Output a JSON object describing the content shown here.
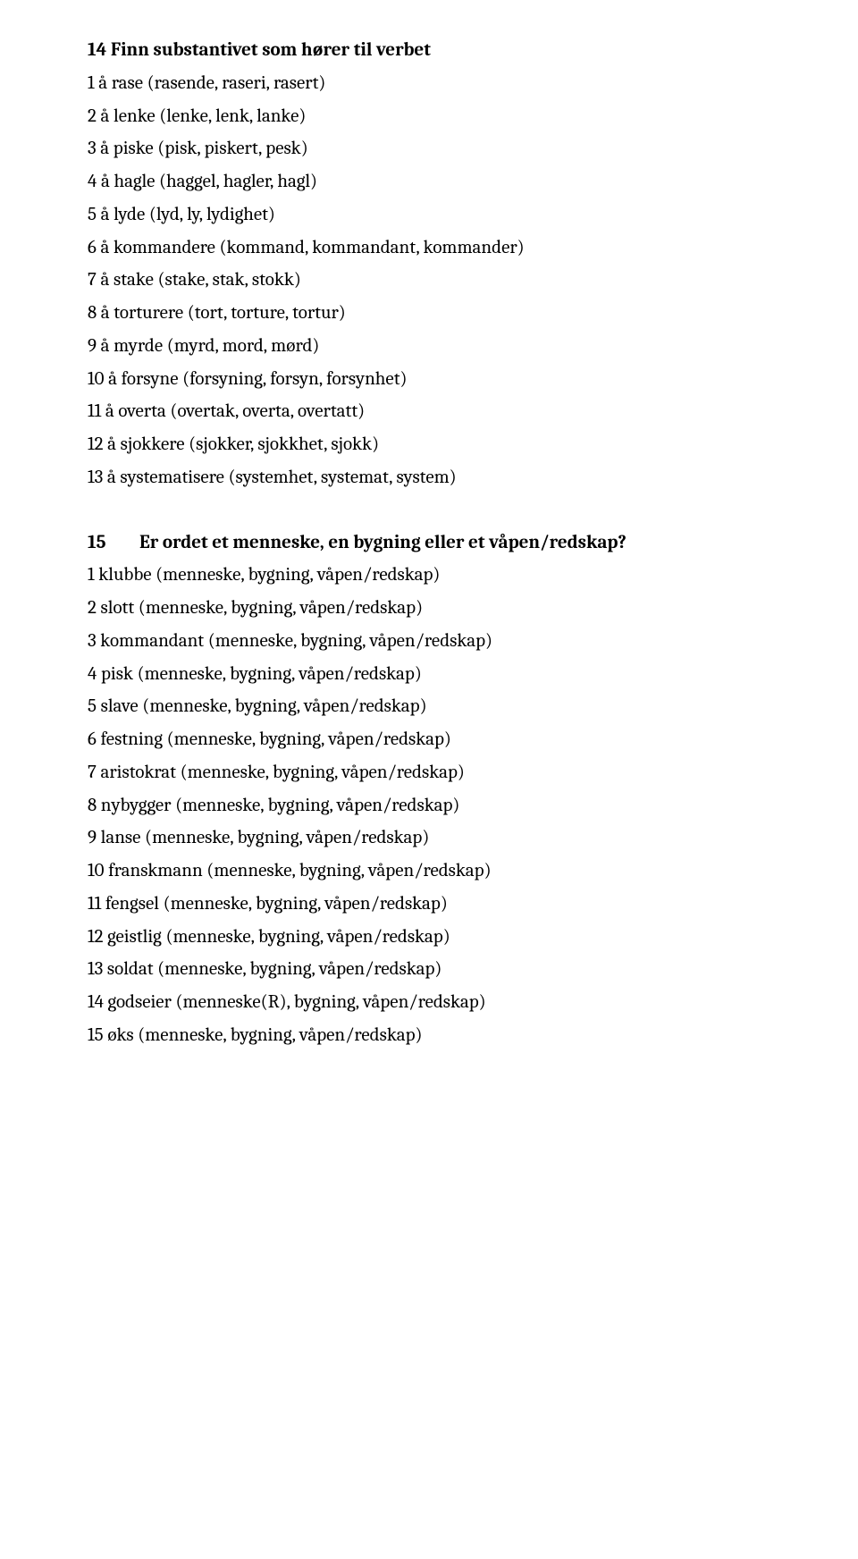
{
  "section14": {
    "heading": "14  Finn substantivet som hører til verbet",
    "items": [
      "1 å rase (rasende, raseri, rasert)",
      "2 å lenke (lenke, lenk, lanke)",
      "3 å piske (pisk, piskert, pesk)",
      "4 å hagle (haggel, hagler, hagl)",
      "5 å lyde (lyd, ly, lydighet)",
      "6 å kommandere (kommand, kommandant, kommander)",
      "7 å stake (stake, stak, stokk)",
      "8 å torturere (tort, torture, tortur)",
      "9 å myrde (myrd, mord, mørd)",
      "10 å forsyne  (forsyning, forsyn, forsynhet)",
      "11 å overta (overtak, overta, overtatt)",
      "12 å sjokkere (sjokker, sjokkhet, sjokk)",
      "13 å systematisere (systemhet, systemat, system)"
    ]
  },
  "section15": {
    "number": "15",
    "title": "Er ordet et menneske, en bygning eller et våpen/redskap?",
    "items": [
      "1 klubbe  (menneske, bygning, våpen/redskap)",
      "2 slott  (menneske, bygning, våpen/redskap)",
      "3 kommandant  (menneske, bygning, våpen/redskap)",
      "4 pisk (menneske, bygning, våpen/redskap)",
      "5 slave  (menneske, bygning, våpen/redskap)",
      "6 festning  (menneske, bygning, våpen/redskap)",
      "7 aristokrat  (menneske, bygning, våpen/redskap)",
      "8 nybygger  (menneske, bygning, våpen/redskap)",
      "9 lanse  (menneske, bygning, våpen/redskap)",
      "10  franskmann  (menneske, bygning, våpen/redskap)",
      "11  fengsel  (menneske, bygning, våpen/redskap)",
      "12  geistlig  (menneske, bygning, våpen/redskap)",
      "13  soldat  (menneske, bygning, våpen/redskap)",
      "14  godseier  (menneske(R), bygning, våpen/redskap)",
      "15  øks  (menneske, bygning, våpen/redskap)"
    ]
  }
}
